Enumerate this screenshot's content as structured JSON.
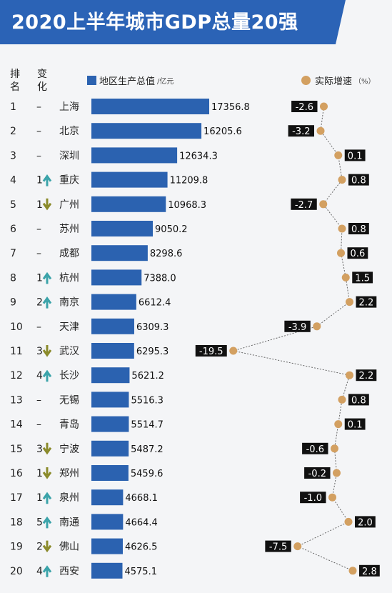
{
  "title": "2020上半年城市GDP总量20强",
  "headers": {
    "rank_line1": "排",
    "rank_line2": "名",
    "change_line1": "变",
    "change_line2": "化"
  },
  "legend": {
    "bar_label": "地区生产总值",
    "bar_unit": "/亿元",
    "dot_label": "实际增速",
    "dot_unit": "（%）"
  },
  "colors": {
    "banner": "#2b63b6",
    "bar": "#2b62b0",
    "dot": "#d3a061",
    "up_arrow": "#3aa3a9",
    "down_arrow": "#8a8a2a"
  },
  "chart_data": {
    "type": "bar",
    "series": [
      {
        "name": "地区生产总值",
        "unit": "亿元"
      },
      {
        "name": "实际增速",
        "unit": "%"
      }
    ],
    "rows": [
      {
        "rank": "1",
        "change": "–",
        "dir": "",
        "city": "上海",
        "gdp": "17356.8",
        "growth": "-2.6"
      },
      {
        "rank": "2",
        "change": "–",
        "dir": "",
        "city": "北京",
        "gdp": "16205.6",
        "growth": "-3.2"
      },
      {
        "rank": "3",
        "change": "–",
        "dir": "",
        "city": "深圳",
        "gdp": "12634.3",
        "growth": "0.1"
      },
      {
        "rank": "4",
        "change": "1",
        "dir": "up",
        "city": "重庆",
        "gdp": "11209.8",
        "growth": "0.8"
      },
      {
        "rank": "5",
        "change": "1",
        "dir": "down",
        "city": "广州",
        "gdp": "10968.3",
        "growth": "-2.7"
      },
      {
        "rank": "6",
        "change": "–",
        "dir": "",
        "city": "苏州",
        "gdp": "9050.2",
        "growth": "0.8"
      },
      {
        "rank": "7",
        "change": "–",
        "dir": "",
        "city": "成都",
        "gdp": "8298.6",
        "growth": "0.6"
      },
      {
        "rank": "8",
        "change": "1",
        "dir": "up",
        "city": "杭州",
        "gdp": "7388.0",
        "growth": "1.5"
      },
      {
        "rank": "9",
        "change": "2",
        "dir": "up",
        "city": "南京",
        "gdp": "6612.4",
        "growth": "2.2"
      },
      {
        "rank": "10",
        "change": "–",
        "dir": "",
        "city": "天津",
        "gdp": "6309.3",
        "growth": "-3.9"
      },
      {
        "rank": "11",
        "change": "3",
        "dir": "down",
        "city": "武汉",
        "gdp": "6295.3",
        "growth": "-19.5"
      },
      {
        "rank": "12",
        "change": "4",
        "dir": "up",
        "city": "长沙",
        "gdp": "5621.2",
        "growth": "2.2"
      },
      {
        "rank": "13",
        "change": "–",
        "dir": "",
        "city": "无锡",
        "gdp": "5516.3",
        "growth": "0.8"
      },
      {
        "rank": "14",
        "change": "–",
        "dir": "",
        "city": "青岛",
        "gdp": "5514.7",
        "growth": "0.1"
      },
      {
        "rank": "15",
        "change": "3",
        "dir": "down",
        "city": "宁波",
        "gdp": "5487.2",
        "growth": "-0.6"
      },
      {
        "rank": "16",
        "change": "1",
        "dir": "down",
        "city": "郑州",
        "gdp": "5459.6",
        "growth": "-0.2"
      },
      {
        "rank": "17",
        "change": "1",
        "dir": "up",
        "city": "泉州",
        "gdp": "4668.1",
        "growth": "-1.0"
      },
      {
        "rank": "18",
        "change": "5",
        "dir": "up",
        "city": "南通",
        "gdp": "4664.4",
        "growth": "2.0"
      },
      {
        "rank": "19",
        "change": "2",
        "dir": "down",
        "city": "佛山",
        "gdp": "4626.5",
        "growth": "-7.5"
      },
      {
        "rank": "20",
        "change": "4",
        "dir": "up",
        "city": "西安",
        "gdp": "4575.1",
        "growth": "2.8"
      }
    ]
  }
}
